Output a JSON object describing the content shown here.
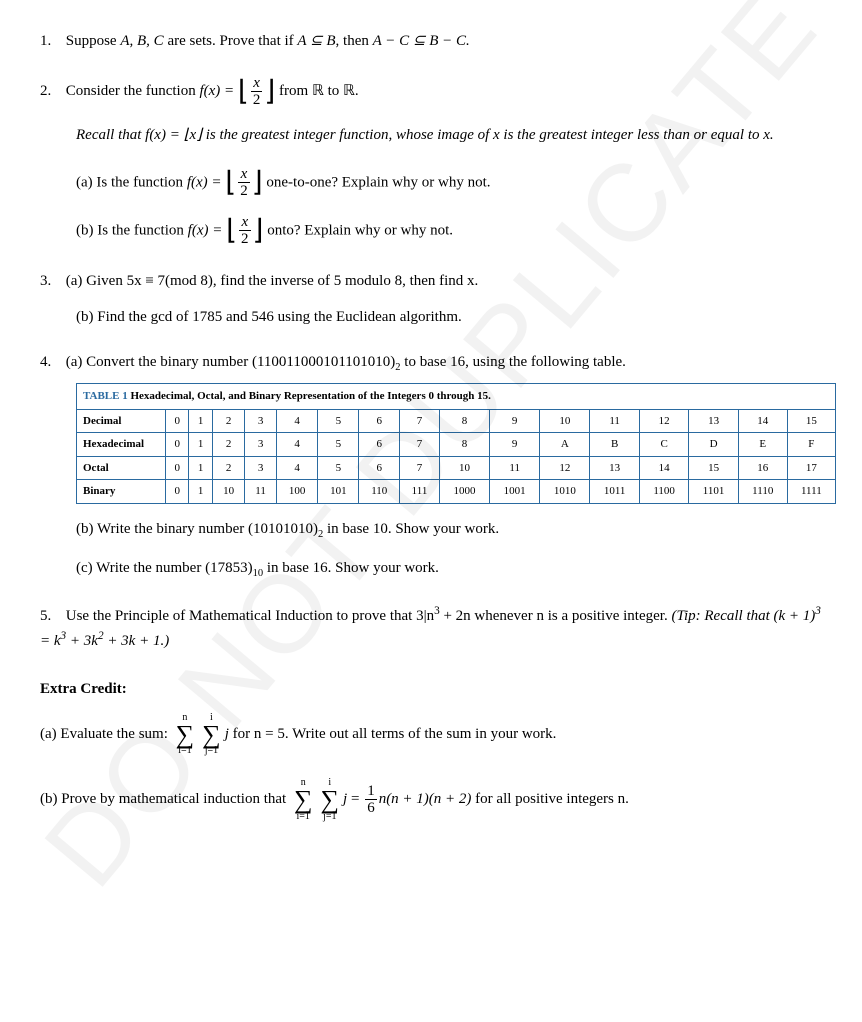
{
  "watermark": "DO NOT DUPLICATE",
  "q1": {
    "text_a": "Suppose ",
    "text_b": " are sets. Prove that if ",
    "text_c": ", then ",
    "sets": "A, B, C",
    "cond": "A ⊆ B",
    "concl": "A − C ⊆ B − C."
  },
  "q2": {
    "lead_a": "Consider the function ",
    "lead_b": " from ",
    "lead_c": " to ",
    "fn": "f(x) = ",
    "frac_top": "x",
    "frac_bot": "2",
    "R": "ℝ",
    "recall": "Recall that f(x) = ⌊x⌋ is the greatest integer function, whose image of x is the greatest integer less than or equal to x.",
    "a_pre": "Is the function ",
    "a_post": " one-to-one? Explain why or why not.",
    "b_pre": "Is the function ",
    "b_post": " onto? Explain why or why not."
  },
  "q3": {
    "a": "Given 5x ≡ 7(mod 8), find the inverse of 5 modulo 8, then find x.",
    "b": "Find the gcd of 1785 and 546 using the Euclidean algorithm."
  },
  "q4": {
    "a_pre": "Convert the binary number (110011000101101010)",
    "a_post": " to base 16, using the following table.",
    "b_pre": "Write the binary number (10101010)",
    "b_post": " in base 10. Show your work.",
    "c_pre": "Write the number (17853)",
    "c_post": " in base 16. Show your work."
  },
  "table": {
    "title_blue": "TABLE 1",
    "title_rest": " Hexadecimal, Octal, and Binary Representation of the Integers 0 through 15.",
    "rows": {
      "dec": {
        "label": "Decimal",
        "cells": [
          "0",
          "1",
          "2",
          "3",
          "4",
          "5",
          "6",
          "7",
          "8",
          "9",
          "10",
          "11",
          "12",
          "13",
          "14",
          "15"
        ]
      },
      "hex": {
        "label": "Hexadecimal",
        "cells": [
          "0",
          "1",
          "2",
          "3",
          "4",
          "5",
          "6",
          "7",
          "8",
          "9",
          "A",
          "B",
          "C",
          "D",
          "E",
          "F"
        ]
      },
      "oct": {
        "label": "Octal",
        "cells": [
          "0",
          "1",
          "2",
          "3",
          "4",
          "5",
          "6",
          "7",
          "10",
          "11",
          "12",
          "13",
          "14",
          "15",
          "16",
          "17"
        ]
      },
      "bin": {
        "label": "Binary",
        "cells": [
          "0",
          "1",
          "10",
          "11",
          "100",
          "101",
          "110",
          "111",
          "1000",
          "1001",
          "1010",
          "1011",
          "1100",
          "1101",
          "1110",
          "1111"
        ]
      }
    }
  },
  "q5": {
    "a": "Use the Principle of Mathematical Induction to prove that 3|n",
    "b": " + 2n whenever n is a positive integer. ",
    "tip": "(Tip: Recall that (k + 1)",
    "tip2": " = k",
    "tip3": " + 3k",
    "tip4": " + 3k + 1.)",
    "sup3": "3",
    "sup2": "2"
  },
  "extra": {
    "heading": "Extra Credit:",
    "a_pre": "Evaluate the sum: ",
    "a_post": " for n = 5. Write out all terms of the sum in your work.",
    "sum_top": "n",
    "sum_bot1": "i=1",
    "sum_top2": "i",
    "sum_bot2": "j=1",
    "sum_body": "j",
    "b_pre": "Prove by mathematical induction that ",
    "b_eq": " = ",
    "b_frac_top": "1",
    "b_frac_bot": "6",
    "b_rhs": "n(n + 1)(n + 2)",
    "b_post": " for all positive integers n."
  }
}
